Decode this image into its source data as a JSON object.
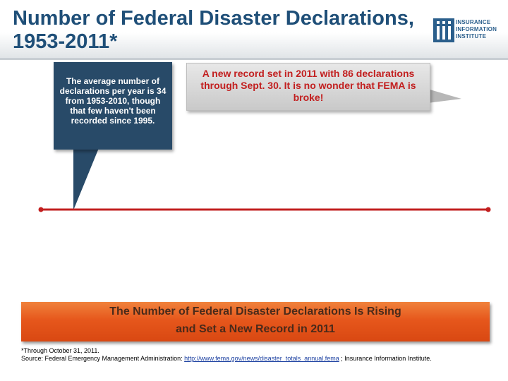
{
  "title": "Number of Federal Disaster Declarations, 1953-2011*",
  "logo": {
    "lines": [
      "INSURANCE",
      "INFORMATION",
      "INSTITUTE"
    ],
    "icon": "iii-logo-icon"
  },
  "callouts": {
    "left": "The average number of declarations per year is 34 from 1953-2010, though that few haven't been recorded since 1995.",
    "right": "A new record set in 2011 with 86 declarations through Sept. 30. It is no wonder that FEMA is broke!"
  },
  "banner": {
    "line1": "The Number of Federal Disaster Declarations Is Rising",
    "line2": "and Set a New Record in 2011"
  },
  "footer": {
    "note": "*Through October 31, 2011.",
    "source_prefix": "Source: Federal Emergency Management Administration: ",
    "source_link": "http://www.fema.gov/news/disaster_totals_annual.fema",
    "source_suffix": " ; Insurance Information Institute."
  },
  "colors": {
    "title": "#1f4f78",
    "callout_left_bg": "#284a68",
    "callout_right_text": "#c21f1f",
    "trend_line": "#c21f1f",
    "banner": "#e6571c"
  },
  "chart_data": {
    "type": "line",
    "title": "Number of Federal Disaster Declarations, 1953-2011*",
    "series": [
      {
        "x": [
          1953,
          2011
        ],
        "values": [
          34,
          34
        ]
      }
    ],
    "xlim": [
      1953,
      2011
    ],
    "grid": false
  }
}
